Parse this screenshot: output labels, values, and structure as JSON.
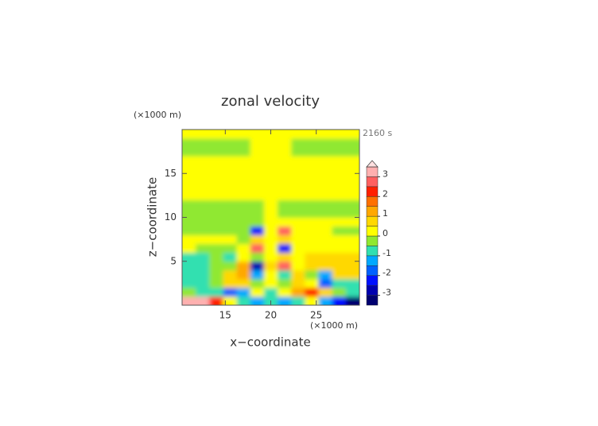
{
  "chart_data": {
    "type": "contour",
    "title": "zonal velocity",
    "x_label": "x−coordinate",
    "y_label": "z−coordinate",
    "x_unit": "(×1000 m)",
    "y_unit": "(×1000 m)",
    "time_label": "2160 s",
    "xlim": [
      10.25,
      29.75
    ],
    "ylim": [
      0,
      20
    ],
    "xticks": [
      15,
      20,
      25
    ],
    "yticks": [
      5,
      10,
      15
    ],
    "x": [
      11,
      12.5,
      14,
      15.5,
      17,
      18.5,
      20,
      21.5,
      23,
      24.5,
      26,
      27.5,
      29
    ],
    "z": [
      0.5,
      1.5,
      2.5,
      3.5,
      4.5,
      5.5,
      6.5,
      7.5,
      8.5,
      9.5,
      10.5,
      11.5,
      12.5,
      13.5,
      14.5,
      15.5,
      16.5,
      17.5,
      18.5,
      19.5
    ],
    "values": [
      [
        3.2,
        3.0,
        2.0,
        0.2,
        -0.8,
        -1.2,
        -0.8,
        -1.2,
        -0.6,
        0.3,
        -1.5,
        -2.5,
        -3.2
      ],
      [
        -0.3,
        -0.6,
        -1.0,
        -1.8,
        -1.2,
        0.3,
        -0.8,
        0.4,
        1.2,
        2.2,
        0.8,
        -0.5,
        -0.6
      ],
      [
        -0.7,
        -0.7,
        -0.5,
        0.6,
        0.8,
        -0.5,
        0.2,
        -0.5,
        0.5,
        0.2,
        -1.6,
        -0.8,
        -0.7
      ],
      [
        -0.6,
        -0.6,
        -0.2,
        0.7,
        1.0,
        -1.2,
        0.3,
        -1.0,
        0.8,
        -0.2,
        -1.5,
        0.7,
        0.7
      ],
      [
        -0.6,
        -0.6,
        -0.5,
        -0.3,
        1.2,
        -2.8,
        0.5,
        2.5,
        0.3,
        0.8,
        0.7,
        0.7,
        0.7
      ],
      [
        -0.6,
        -0.6,
        -0.5,
        -0.6,
        0.3,
        -0.5,
        0.3,
        0.5,
        0.3,
        0.6,
        0.6,
        0.6,
        0.6
      ],
      [
        0.2,
        -0.2,
        -0.3,
        -0.2,
        0.2,
        2.5,
        0.0,
        -2.5,
        0.4,
        0.4,
        0.4,
        0.3,
        0.2
      ],
      [
        0.0,
        0.0,
        0.0,
        0.0,
        -0.3,
        0.5,
        0.0,
        0.6,
        0.3,
        0.2,
        0.2,
        0.0,
        0.0
      ],
      [
        -0.2,
        -0.2,
        -0.2,
        -0.2,
        -0.3,
        -2.5,
        0.0,
        2.5,
        0.2,
        0.1,
        0.1,
        -0.1,
        -0.2
      ],
      [
        -0.2,
        -0.2,
        -0.2,
        -0.2,
        -0.2,
        -0.2,
        0.1,
        0.2,
        0.2,
        0.2,
        0.2,
        0.2,
        0.2
      ],
      [
        -0.2,
        -0.2,
        -0.2,
        -0.2,
        -0.2,
        -0.2,
        0.1,
        -0.1,
        -0.1,
        -0.1,
        -0.1,
        -0.1,
        -0.1
      ],
      [
        -0.2,
        -0.2,
        -0.2,
        -0.2,
        -0.2,
        -0.2,
        0.1,
        -0.1,
        -0.1,
        -0.1,
        -0.1,
        -0.1,
        -0.1
      ],
      [
        0.2,
        0.2,
        0.2,
        0.2,
        0.2,
        0.2,
        0.2,
        0.2,
        0.2,
        0.2,
        0.2,
        0.2,
        0.2
      ],
      [
        0.2,
        0.2,
        0.2,
        0.2,
        0.2,
        0.2,
        0.2,
        0.2,
        0.2,
        0.2,
        0.2,
        0.2,
        0.2
      ],
      [
        0.2,
        0.2,
        0.2,
        0.2,
        0.2,
        0.2,
        0.2,
        0.2,
        0.2,
        0.2,
        0.2,
        0.2,
        0.2
      ],
      [
        0.2,
        0.2,
        0.2,
        0.2,
        0.2,
        0.2,
        0.2,
        0.2,
        0.2,
        0.2,
        0.2,
        0.2,
        0.2
      ],
      [
        0.2,
        0.2,
        0.2,
        0.2,
        0.2,
        0.2,
        0.2,
        0.2,
        0.2,
        0.2,
        0.2,
        0.2,
        0.2
      ],
      [
        -0.2,
        -0.2,
        -0.2,
        -0.2,
        -0.2,
        0.1,
        0.1,
        0.2,
        -0.2,
        -0.2,
        -0.2,
        -0.2,
        -0.2
      ],
      [
        -0.2,
        -0.2,
        -0.2,
        -0.2,
        -0.2,
        0.1,
        0.1,
        0.2,
        -0.1,
        -0.2,
        -0.2,
        -0.2,
        -0.2
      ],
      [
        0.2,
        0.2,
        0.2,
        0.2,
        0.2,
        0.2,
        0.2,
        0.2,
        0.2,
        0.2,
        0.2,
        0.2,
        0.2
      ]
    ],
    "levels": [
      -3.5,
      -3,
      -2.5,
      -2,
      -1.5,
      -1,
      -0.5,
      0,
      0.5,
      1,
      1.5,
      2,
      2.5,
      3,
      3.5
    ],
    "colors": [
      "#000070",
      "#0000b0",
      "#0010ff",
      "#0060ff",
      "#00a8ff",
      "#30e0b0",
      "#90e830",
      "#ffff00",
      "#ffd800",
      "#ffa800",
      "#ff7000",
      "#ff2000",
      "#ff6060",
      "#ffb0b0"
    ],
    "over_color": "#ffe0e0",
    "cbar_ticks": [
      -3,
      -2,
      -1,
      0,
      1,
      2,
      3
    ]
  }
}
